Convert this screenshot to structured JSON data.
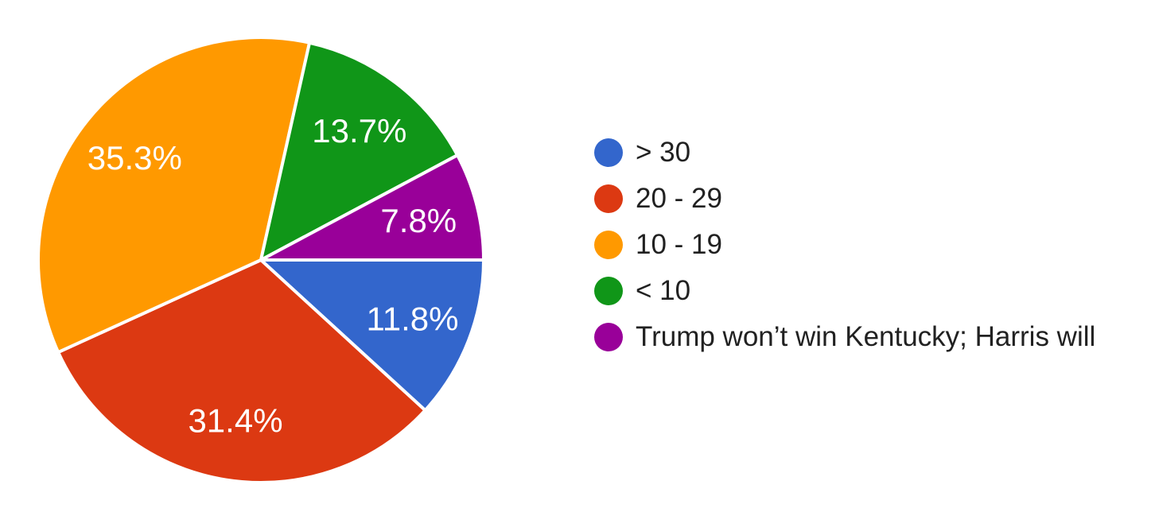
{
  "page": {
    "background": "#ffffff"
  },
  "chart_data": {
    "type": "pie",
    "title": "",
    "legend_position": "right",
    "start_angle_deg_from_east": 0,
    "direction": "clockwise",
    "slice_label_color": "#ffffff",
    "separator_color": "#ffffff",
    "legend_text_color": "#212121",
    "slices": [
      {
        "label": "> 30",
        "value": 11.8,
        "display": "11.8%",
        "color": "#3366CC"
      },
      {
        "label": "20 - 29",
        "value": 31.4,
        "display": "31.4%",
        "color": "#DC3912"
      },
      {
        "label": "10 - 19",
        "value": 35.3,
        "display": "35.3%",
        "color": "#FF9900"
      },
      {
        "label": "< 10",
        "value": 13.7,
        "display": "13.7%",
        "color": "#109618"
      },
      {
        "label": "Trump won’t win Kentucky; Harris will",
        "value": 7.8,
        "display": "7.8%",
        "color": "#990099"
      }
    ]
  }
}
